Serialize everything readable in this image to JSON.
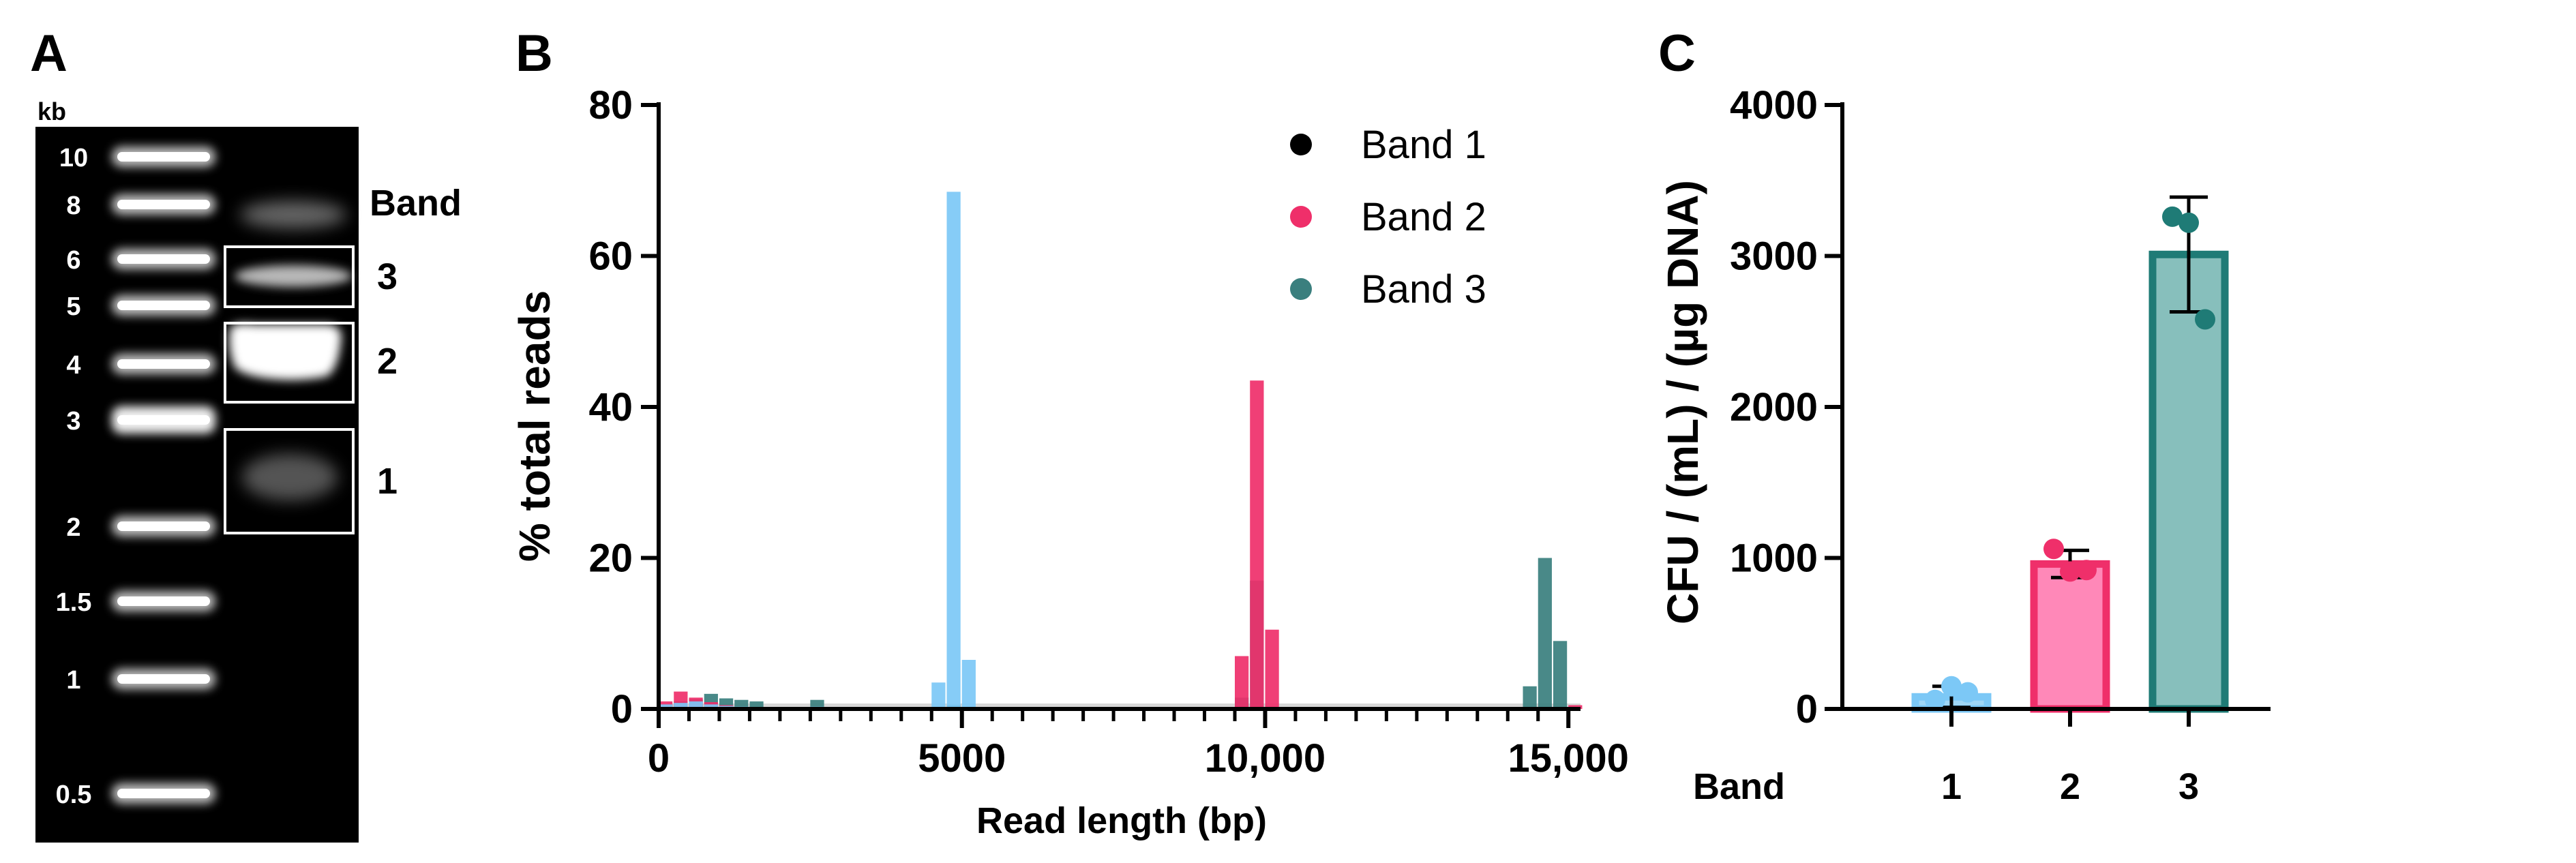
{
  "panels": {
    "a": "A",
    "b": "B",
    "c": "C"
  },
  "gel": {
    "unit_label": "kb",
    "ladder_labels": [
      "10",
      "8",
      "6",
      "5",
      "4",
      "3",
      "2",
      "1.5",
      "1",
      "0.5"
    ],
    "band_header": "Band",
    "box_labels": [
      "3",
      "2",
      "1"
    ]
  },
  "chart_data": [
    {
      "type": "bar",
      "title": "",
      "xlabel": "Read length (bp)",
      "ylabel": "% total reads",
      "xlim": [
        0,
        15200
      ],
      "ylim": [
        0,
        80
      ],
      "x_ticks": [
        0,
        5000,
        10000,
        15000
      ],
      "x_tick_labels": [
        "0",
        "5000",
        "10,000",
        "15,000"
      ],
      "y_ticks": [
        0,
        20,
        40,
        60,
        80
      ],
      "y_tick_labels": [
        "0",
        "20",
        "40",
        "60",
        "80"
      ],
      "bin_width_bp": 250,
      "legend_position": "top-right",
      "series": [
        {
          "name": "Band 1",
          "color": "#7cc8f6",
          "bins_bp": [
            0,
            250,
            500,
            750,
            1000,
            1250,
            2500,
            4500,
            4750,
            5000
          ],
          "values": [
            0.6,
            0.8,
            1.0,
            0.6,
            0.4,
            0.3,
            0.3,
            3.5,
            68.5,
            6.5
          ]
        },
        {
          "name": "Band 2",
          "color": "#ef2f6a",
          "bins_bp": [
            0,
            250,
            500,
            750,
            1000,
            9500,
            9750,
            10000,
            15000
          ],
          "values": [
            1.0,
            2.3,
            1.5,
            0.9,
            0.5,
            7.0,
            43.5,
            10.5,
            0.5
          ]
        },
        {
          "name": "Band 3",
          "color": "#3a7f7e",
          "bins_bp": [
            0,
            250,
            500,
            750,
            1000,
            1250,
            1500,
            2500,
            4750,
            9500,
            9750,
            14250,
            14500,
            14750
          ],
          "values": [
            0.6,
            1.0,
            1.3,
            2.0,
            1.4,
            1.2,
            1.0,
            1.2,
            0.5,
            1.5,
            17.0,
            3.0,
            20.0,
            9.0
          ]
        }
      ]
    },
    {
      "type": "bar",
      "title": "",
      "xlabel": "Band",
      "ylabel": "CFU / (mL) / (µg DNA)",
      "ylim": [
        0,
        4000
      ],
      "y_ticks": [
        0,
        1000,
        2000,
        3000,
        4000
      ],
      "y_tick_labels": [
        "0",
        "1000",
        "2000",
        "3000",
        "4000"
      ],
      "categories": [
        "1",
        "2",
        "3"
      ],
      "values": [
        80,
        960,
        3010
      ],
      "error": [
        70,
        90,
        380
      ],
      "points": [
        [
          60,
          150,
          110
        ],
        [
          1060,
          910,
          920
        ],
        [
          3260,
          3220,
          2580
        ]
      ],
      "fill_colors": [
        "#9fd6f5",
        "#ff88b8",
        "#87bfbc"
      ],
      "edge_colors": [
        "#7cc8f6",
        "#ef2f6a",
        "#1f7b76"
      ]
    }
  ]
}
